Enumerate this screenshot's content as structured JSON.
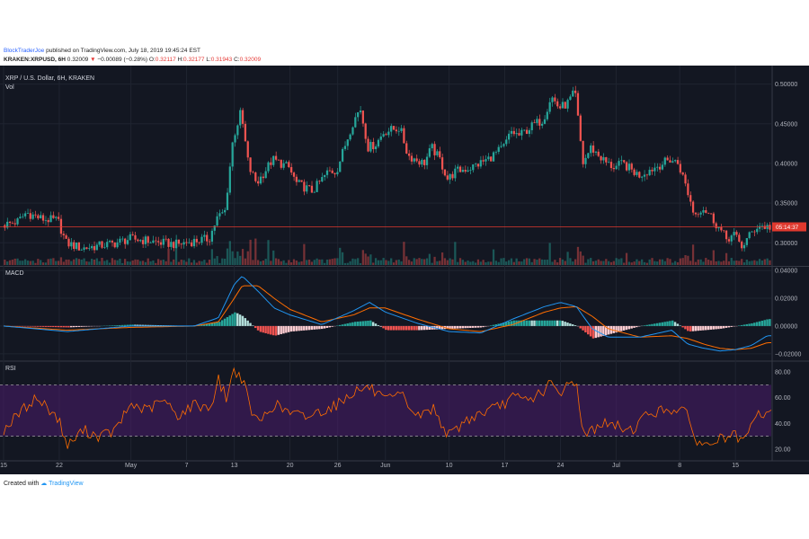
{
  "header": {
    "author": "BlockTraderJoe",
    "published_text": "published on TradingView.com, July 18, 2019 19:45:24 EST",
    "symbol": "KRAKEN:XRPUSD, 6H",
    "last": "0.32009",
    "change_arrow": "▼",
    "change": "−0.00089 (−0.28%)",
    "o_label": "O:",
    "o": "0.32117",
    "h_label": "H:",
    "h": "0.32177",
    "l_label": "L:",
    "l": "0.31943",
    "c_label": "C:",
    "c": "0.32009"
  },
  "footer": {
    "created_with": "Created with",
    "brand": "TradingView",
    "icon": "tradingview-cloud-icon"
  },
  "colors": {
    "background": "#131722",
    "grid": "#1f2430",
    "up": "#26a69a",
    "down": "#ef5350",
    "macd_line": "#2196f3",
    "signal_line": "#ff6d00",
    "rsi_line": "#ff6d00",
    "rsi_band": "#4b1c6b",
    "price_line": "#e0392e"
  },
  "chart_data": [
    {
      "type": "candlestick",
      "title": "XRP / U.S. Dollar, 6H, KRAKEN",
      "sub_label": "Vol",
      "y_ticks": [
        "0.50000",
        "0.45000",
        "0.40000",
        "0.35000",
        "0.30000"
      ],
      "ylim": [
        0.272,
        0.512
      ],
      "current_price_label": "0.32009",
      "countdown_label": "05:14:37",
      "x_tick_labels": [
        "15",
        "22",
        "May",
        "7",
        "13",
        "20",
        "26",
        "Jun",
        "10",
        "17",
        "24",
        "Jul",
        "8",
        "15"
      ],
      "x_tick_days": [
        0,
        7,
        16,
        23,
        29,
        36,
        42,
        48,
        56,
        63,
        70,
        77,
        85,
        92
      ],
      "series": [
        {
          "name": "XRPUSD",
          "day": 0,
          "close": 0.322
        },
        {
          "day": 2,
          "close": 0.327
        },
        {
          "day": 3,
          "close": 0.338
        },
        {
          "day": 5,
          "close": 0.33
        },
        {
          "day": 7,
          "close": 0.328
        },
        {
          "day": 8,
          "close": 0.3
        },
        {
          "day": 10,
          "close": 0.293
        },
        {
          "day": 12,
          "close": 0.296
        },
        {
          "day": 14,
          "close": 0.299
        },
        {
          "day": 16,
          "close": 0.305
        },
        {
          "day": 18,
          "close": 0.303
        },
        {
          "day": 20,
          "close": 0.3
        },
        {
          "day": 22,
          "close": 0.298
        },
        {
          "day": 24,
          "close": 0.302
        },
        {
          "day": 26,
          "close": 0.305
        },
        {
          "day": 27,
          "close": 0.331
        },
        {
          "day": 28,
          "close": 0.34
        },
        {
          "day": 29,
          "close": 0.43
        },
        {
          "day": 30,
          "close": 0.465
        },
        {
          "day": 31,
          "close": 0.395
        },
        {
          "day": 32,
          "close": 0.375
        },
        {
          "day": 34,
          "close": 0.405
        },
        {
          "day": 36,
          "close": 0.395
        },
        {
          "day": 37,
          "close": 0.375
        },
        {
          "day": 39,
          "close": 0.365
        },
        {
          "day": 41,
          "close": 0.39
        },
        {
          "day": 42,
          "close": 0.39
        },
        {
          "day": 43,
          "close": 0.42
        },
        {
          "day": 44,
          "close": 0.45
        },
        {
          "day": 45,
          "close": 0.47
        },
        {
          "day": 46,
          "close": 0.42
        },
        {
          "day": 47,
          "close": 0.425
        },
        {
          "day": 48,
          "close": 0.44
        },
        {
          "day": 50,
          "close": 0.445
        },
        {
          "day": 51,
          "close": 0.41
        },
        {
          "day": 53,
          "close": 0.4
        },
        {
          "day": 54,
          "close": 0.42
        },
        {
          "day": 55,
          "close": 0.405
        },
        {
          "day": 56,
          "close": 0.38
        },
        {
          "day": 57,
          "close": 0.39
        },
        {
          "day": 59,
          "close": 0.395
        },
        {
          "day": 61,
          "close": 0.405
        },
        {
          "day": 63,
          "close": 0.42
        },
        {
          "day": 64,
          "close": 0.44
        },
        {
          "day": 65,
          "close": 0.435
        },
        {
          "day": 67,
          "close": 0.45
        },
        {
          "day": 68,
          "close": 0.455
        },
        {
          "day": 69,
          "close": 0.485
        },
        {
          "day": 70,
          "close": 0.47
        },
        {
          "day": 71,
          "close": 0.475
        },
        {
          "day": 72,
          "close": 0.49
        },
        {
          "day": 73,
          "close": 0.4
        },
        {
          "day": 74,
          "close": 0.42
        },
        {
          "day": 75,
          "close": 0.41
        },
        {
          "day": 76,
          "close": 0.4
        },
        {
          "day": 77,
          "close": 0.395
        },
        {
          "day": 78,
          "close": 0.4
        },
        {
          "day": 80,
          "close": 0.385
        },
        {
          "day": 82,
          "close": 0.395
        },
        {
          "day": 84,
          "close": 0.405
        },
        {
          "day": 85,
          "close": 0.4
        },
        {
          "day": 86,
          "close": 0.37
        },
        {
          "day": 87,
          "close": 0.335
        },
        {
          "day": 88,
          "close": 0.345
        },
        {
          "day": 89,
          "close": 0.335
        },
        {
          "day": 90,
          "close": 0.32
        },
        {
          "day": 91,
          "close": 0.305
        },
        {
          "day": 92,
          "close": 0.31
        },
        {
          "day": 93,
          "close": 0.295
        },
        {
          "day": 94,
          "close": 0.31
        },
        {
          "day": 95,
          "close": 0.322
        },
        {
          "day": 96,
          "close": 0.32
        }
      ]
    },
    {
      "type": "macd",
      "title": "MACD",
      "y_ticks": [
        "0.04000",
        "0.02000",
        "0.00000",
        "−0.02000"
      ],
      "ylim": [
        -0.024,
        0.042
      ],
      "series": [
        {
          "name": "MACD",
          "day": [
            0,
            8,
            16,
            24,
            27,
            29,
            30,
            32,
            34,
            36,
            40,
            44,
            46,
            48,
            52,
            56,
            60,
            64,
            68,
            70,
            72,
            74,
            76,
            80,
            84,
            86,
            88,
            90,
            92,
            94,
            96
          ],
          "values": [
            0.0,
            -0.004,
            0.0,
            0.0,
            0.006,
            0.03,
            0.036,
            0.025,
            0.013,
            0.008,
            0.001,
            0.011,
            0.017,
            0.01,
            0.002,
            -0.004,
            -0.005,
            0.005,
            0.014,
            0.017,
            0.014,
            -0.002,
            -0.008,
            -0.008,
            -0.003,
            -0.013,
            -0.016,
            -0.018,
            -0.017,
            -0.014,
            -0.007
          ]
        },
        {
          "name": "Signal",
          "day": [
            0,
            8,
            16,
            24,
            27,
            29,
            30,
            32,
            34,
            36,
            40,
            44,
            46,
            48,
            52,
            56,
            60,
            64,
            68,
            70,
            72,
            74,
            76,
            80,
            84,
            86,
            88,
            90,
            92,
            94,
            96
          ],
          "values": [
            0.0,
            -0.003,
            -0.001,
            0.0,
            0.003,
            0.02,
            0.029,
            0.029,
            0.02,
            0.012,
            0.003,
            0.008,
            0.013,
            0.013,
            0.005,
            -0.002,
            -0.004,
            0.001,
            0.01,
            0.013,
            0.014,
            0.007,
            -0.002,
            -0.008,
            -0.007,
            -0.009,
            -0.013,
            -0.016,
            -0.017,
            -0.016,
            -0.012
          ]
        }
      ]
    },
    {
      "type": "rsi",
      "title": "RSI",
      "y_ticks": [
        "80.00",
        "60.00",
        "40.00",
        "20.00"
      ],
      "ylim": [
        13,
        87
      ],
      "band": [
        30,
        70
      ],
      "series": [
        {
          "name": "RSI",
          "day": [
            0,
            2,
            4,
            6,
            7,
            8,
            10,
            12,
            14,
            16,
            18,
            20,
            22,
            24,
            26,
            27,
            28,
            29,
            30,
            31,
            32,
            34,
            36,
            38,
            40,
            42,
            44,
            46,
            48,
            50,
            52,
            54,
            56,
            58,
            60,
            62,
            64,
            66,
            68,
            69,
            70,
            71,
            72,
            73,
            75,
            77,
            79,
            81,
            83,
            85,
            86,
            87,
            88,
            90,
            92,
            93,
            94,
            95,
            96
          ],
          "values": [
            35,
            48,
            60,
            50,
            42,
            22,
            35,
            30,
            34,
            55,
            50,
            58,
            46,
            55,
            52,
            74,
            60,
            82,
            75,
            52,
            40,
            55,
            48,
            45,
            50,
            55,
            65,
            68,
            57,
            62,
            45,
            52,
            30,
            42,
            48,
            52,
            60,
            58,
            66,
            72,
            58,
            75,
            70,
            30,
            40,
            38,
            35,
            48,
            50,
            52,
            45,
            28,
            22,
            28,
            30,
            24,
            38,
            48,
            47
          ]
        }
      ]
    }
  ]
}
